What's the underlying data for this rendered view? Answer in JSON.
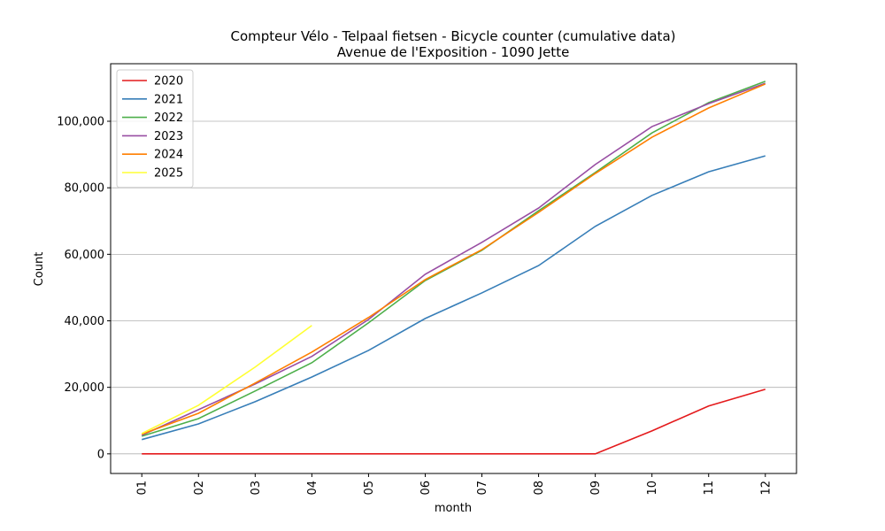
{
  "chart_data": {
    "type": "line",
    "title": "Compteur Vélo - Telpaal fietsen - Bicycle counter (cumulative data)",
    "subtitle": "Avenue de l'Exposition - 1090 Jette",
    "x_label": "month",
    "y_label": "Count",
    "categories": [
      "01",
      "02",
      "03",
      "04",
      "05",
      "06",
      "07",
      "08",
      "09",
      "10",
      "11",
      "12"
    ],
    "series": [
      {
        "name": "2020",
        "color": "#e41a1c",
        "values": [
          0,
          0,
          0,
          0,
          0,
          0,
          0,
          0,
          0,
          6900,
          14400,
          19400
        ]
      },
      {
        "name": "2021",
        "color": "#377eb8",
        "values": [
          4300,
          9000,
          15700,
          23100,
          31100,
          40700,
          48400,
          56600,
          68400,
          77700,
          84800,
          89600
        ]
      },
      {
        "name": "2022",
        "color": "#4daf4a",
        "values": [
          5300,
          10600,
          18900,
          27400,
          39400,
          52100,
          61200,
          73100,
          84600,
          96500,
          105600,
          112000
        ]
      },
      {
        "name": "2023",
        "color": "#984ea3",
        "values": [
          5600,
          13300,
          21000,
          29300,
          40400,
          54000,
          63600,
          73900,
          87000,
          98400,
          105300,
          111400
        ]
      },
      {
        "name": "2024",
        "color": "#ff7f00",
        "values": [
          5900,
          12200,
          21300,
          30600,
          41000,
          52400,
          61400,
          72600,
          84300,
          95200,
          104000,
          111200
        ]
      },
      {
        "name": "2025",
        "color": "#ffff33",
        "values": [
          6100,
          14600,
          26100,
          38600,
          null,
          null,
          null,
          null,
          null,
          null,
          null,
          null
        ]
      }
    ],
    "ylim": [
      -5900,
      117300
    ],
    "yticks": [
      0,
      {
        "value": 20000,
        "label": "20,000"
      },
      {
        "value": 40000,
        "label": "40,000"
      },
      {
        "value": 60000,
        "label": "60,000"
      },
      {
        "value": 80000,
        "label": "80,000"
      },
      {
        "value": 100000,
        "label": "100,000"
      }
    ],
    "grid": "y",
    "legend": "upper left"
  }
}
